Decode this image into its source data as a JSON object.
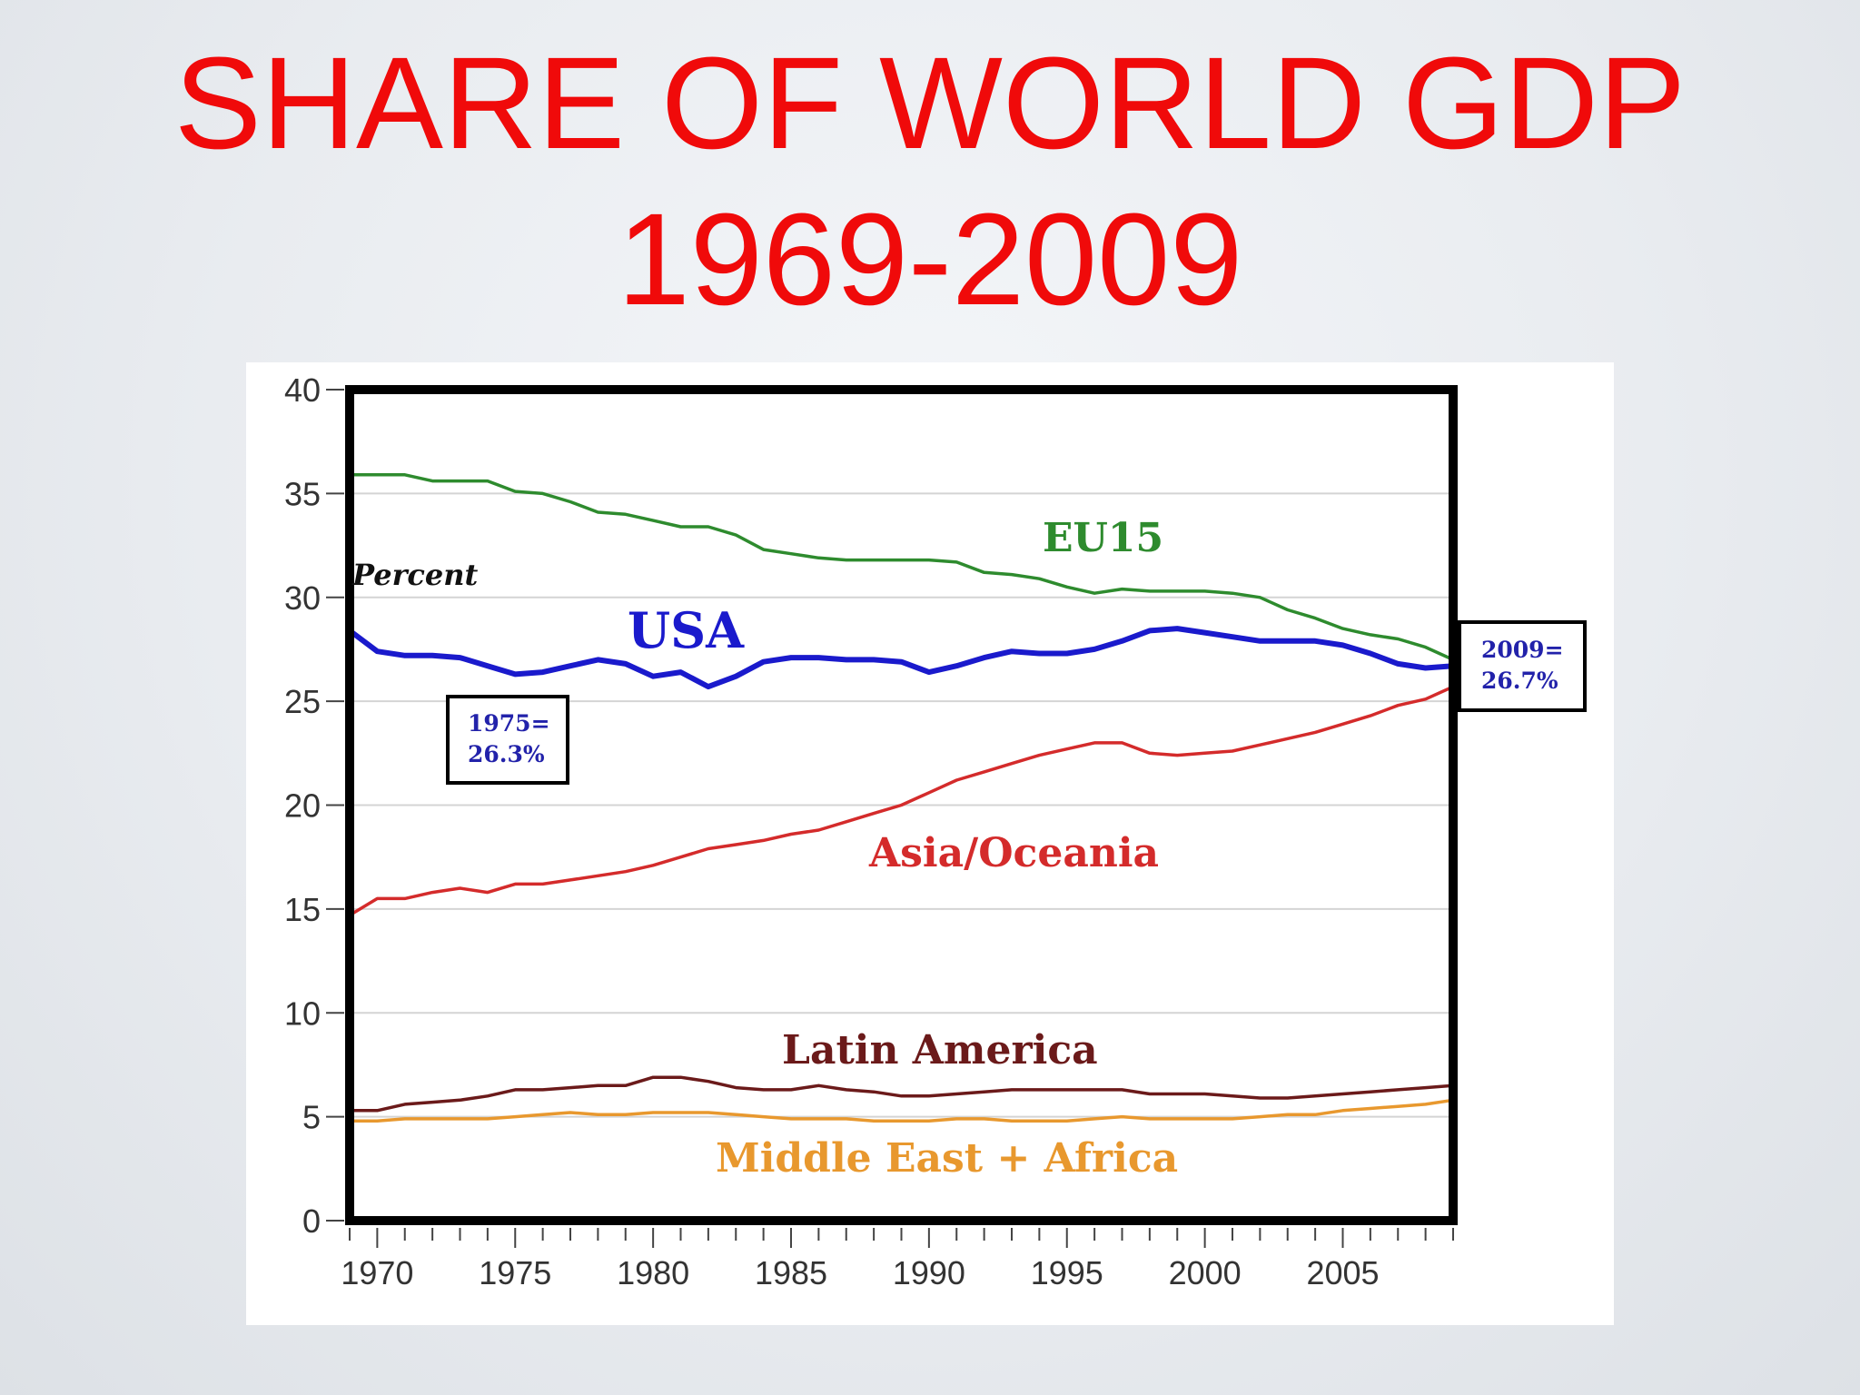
{
  "slide": {
    "title_line1": "SHARE OF WORLD GDP",
    "title_line2": "1969-2009"
  },
  "colors": {
    "title": "#f00a0a",
    "EU15": "#2e8b2e",
    "USA": "#1a1acc",
    "Asia/Oceania": "#d42b2b",
    "Latin America": "#6b1a1a",
    "Middle East + Africa": "#e8982e"
  },
  "chart_data": {
    "type": "line",
    "title": "",
    "xlabel": "",
    "ylabel": "Percent",
    "xlim": [
      1969,
      2009
    ],
    "ylim": [
      0,
      40
    ],
    "yticks": [
      0,
      5,
      10,
      15,
      20,
      25,
      30,
      35,
      40
    ],
    "xticks": [
      1970,
      1975,
      1980,
      1985,
      1990,
      1995,
      2000,
      2005
    ],
    "grid": true,
    "x": [
      1969,
      1970,
      1971,
      1972,
      1973,
      1974,
      1975,
      1976,
      1977,
      1978,
      1979,
      1980,
      1981,
      1982,
      1983,
      1984,
      1985,
      1986,
      1987,
      1988,
      1989,
      1990,
      1991,
      1992,
      1993,
      1994,
      1995,
      1996,
      1997,
      1998,
      1999,
      2000,
      2001,
      2002,
      2003,
      2004,
      2005,
      2006,
      2007,
      2008,
      2009
    ],
    "series": [
      {
        "name": "EU15",
        "values": [
          35.9,
          35.9,
          35.9,
          35.6,
          35.6,
          35.6,
          35.1,
          35.0,
          34.6,
          34.1,
          34.0,
          33.7,
          33.4,
          33.4,
          33.0,
          32.3,
          32.1,
          31.9,
          31.8,
          31.8,
          31.8,
          31.8,
          31.7,
          31.2,
          31.1,
          30.9,
          30.5,
          30.2,
          30.4,
          30.3,
          30.3,
          30.3,
          30.2,
          30.0,
          29.4,
          29.0,
          28.5,
          28.2,
          28.0,
          27.6,
          27.0
        ]
      },
      {
        "name": "USA",
        "values": [
          28.4,
          27.4,
          27.2,
          27.2,
          27.1,
          26.7,
          26.3,
          26.4,
          26.7,
          27.0,
          26.8,
          26.2,
          26.4,
          25.7,
          26.2,
          26.9,
          27.1,
          27.1,
          27.0,
          27.0,
          26.9,
          26.4,
          26.7,
          27.1,
          27.4,
          27.3,
          27.3,
          27.5,
          27.9,
          28.4,
          28.5,
          28.3,
          28.1,
          27.9,
          27.9,
          27.9,
          27.7,
          27.3,
          26.8,
          26.6,
          26.7
        ]
      },
      {
        "name": "Asia/Oceania",
        "values": [
          14.7,
          15.5,
          15.5,
          15.8,
          16.0,
          15.8,
          16.2,
          16.2,
          16.4,
          16.6,
          16.8,
          17.1,
          17.5,
          17.9,
          18.1,
          18.3,
          18.6,
          18.8,
          19.2,
          19.6,
          20.0,
          20.6,
          21.2,
          21.6,
          22.0,
          22.4,
          22.7,
          23.0,
          23.0,
          22.5,
          22.4,
          22.5,
          22.6,
          22.9,
          23.2,
          23.5,
          23.9,
          24.3,
          24.8,
          25.1,
          25.7
        ]
      },
      {
        "name": "Latin America",
        "values": [
          5.3,
          5.3,
          5.6,
          5.7,
          5.8,
          6.0,
          6.3,
          6.3,
          6.4,
          6.5,
          6.5,
          6.9,
          6.9,
          6.7,
          6.4,
          6.3,
          6.3,
          6.5,
          6.3,
          6.2,
          6.0,
          6.0,
          6.1,
          6.2,
          6.3,
          6.3,
          6.3,
          6.3,
          6.3,
          6.1,
          6.1,
          6.1,
          6.0,
          5.9,
          5.9,
          6.0,
          6.1,
          6.2,
          6.3,
          6.4,
          6.5
        ]
      },
      {
        "name": "Middle East + Africa",
        "values": [
          4.8,
          4.8,
          4.9,
          4.9,
          4.9,
          4.9,
          5.0,
          5.1,
          5.2,
          5.1,
          5.1,
          5.2,
          5.2,
          5.2,
          5.1,
          5.0,
          4.9,
          4.9,
          4.9,
          4.8,
          4.8,
          4.8,
          4.9,
          4.9,
          4.8,
          4.8,
          4.8,
          4.9,
          5.0,
          4.9,
          4.9,
          4.9,
          4.9,
          5.0,
          5.1,
          5.1,
          5.3,
          5.4,
          5.5,
          5.6,
          5.8
        ]
      }
    ],
    "annotations": [
      {
        "text_line1": "1975=",
        "text_line2": "26.3%"
      },
      {
        "text_line1": "2009=",
        "text_line2": "26.7%"
      }
    ]
  }
}
